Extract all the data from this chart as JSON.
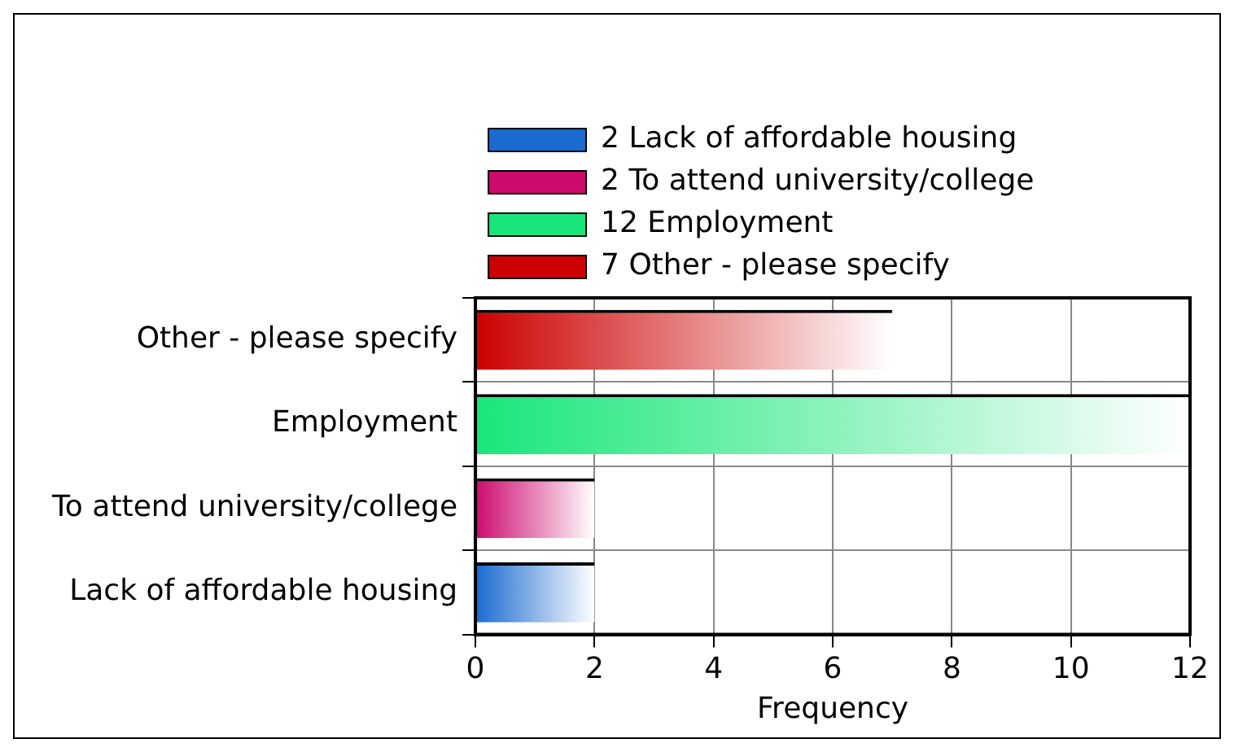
{
  "chart_data": {
    "type": "bar",
    "orientation": "horizontal",
    "xlabel": "Frequency",
    "categories": [
      "Other - please specify",
      "Employment",
      "To attend university/college",
      "Lack of affordable housing"
    ],
    "series": [
      {
        "name": "2 Lack of affordable housing",
        "color": "#1a6ad0",
        "values": [
          null,
          null,
          null,
          2
        ]
      },
      {
        "name": "2 To attend university/college",
        "color": "#cc0a6e",
        "values": [
          null,
          null,
          2,
          null
        ]
      },
      {
        "name": "12 Employment",
        "color": "#19e67a",
        "values": [
          null,
          12,
          null,
          null
        ]
      },
      {
        "name": "7 Other - please specify",
        "color": "#cc0000",
        "values": [
          7,
          null,
          null,
          null
        ]
      }
    ],
    "xlim": [
      0,
      12
    ],
    "xticks": [
      0,
      2,
      4,
      6,
      8,
      10,
      12
    ],
    "grid": true,
    "legend": "top"
  }
}
